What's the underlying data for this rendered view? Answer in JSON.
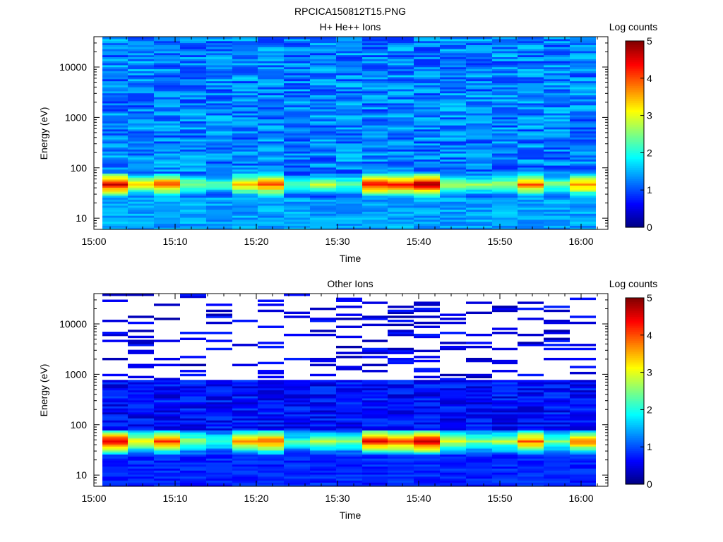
{
  "figure": {
    "title": "RPCICA150812T15.PNG",
    "colormap": "jet"
  },
  "chart_data": [
    {
      "type": "heatmap",
      "title": "H+ He++ Ions",
      "xlabel": "Time",
      "ylabel": "Energy (eV)",
      "y_scale": "log",
      "ylim": [
        6,
        40000
      ],
      "x_ticks": [
        "15:00",
        "15:10",
        "15:20",
        "15:30",
        "15:40",
        "15:50",
        "16:00"
      ],
      "y_ticks": [
        10,
        100,
        1000,
        10000
      ],
      "time_start": "15:01",
      "time_bin_minutes": 3.2,
      "colorbar": {
        "label": "Log counts",
        "range": [
          0,
          5
        ],
        "ticks": [
          0,
          1,
          2,
          3,
          4,
          5
        ]
      },
      "peak_log_counts_per_column": [
        4.6,
        3.2,
        4.0,
        2.7,
        2.3,
        3.6,
        4.0,
        2.2,
        2.8,
        2.5,
        4.4,
        4.2,
        4.9,
        2.9,
        2.6,
        2.7,
        3.9,
        2.6,
        3.8
      ],
      "low_energy_band_eV": [
        25,
        80
      ],
      "background_log_counts": [
        0.8,
        1.7
      ],
      "sparse_high_energy": false
    },
    {
      "type": "heatmap",
      "title": "Other Ions",
      "xlabel": "Time",
      "ylabel": "Energy (eV)",
      "y_scale": "log",
      "ylim": [
        6,
        40000
      ],
      "x_ticks": [
        "15:00",
        "15:10",
        "15:20",
        "15:30",
        "15:40",
        "15:50",
        "16:00"
      ],
      "y_ticks": [
        10,
        100,
        1000,
        10000
      ],
      "time_start": "15:01",
      "time_bin_minutes": 3.2,
      "colorbar": {
        "label": "Log counts",
        "range": [
          0,
          5
        ],
        "ticks": [
          0,
          1,
          2,
          3,
          4,
          5
        ]
      },
      "peak_log_counts_per_column": [
        4.6,
        3.2,
        4.0,
        2.7,
        2.3,
        3.6,
        4.0,
        2.2,
        2.8,
        2.5,
        4.4,
        4.2,
        4.9,
        2.9,
        2.6,
        2.7,
        3.9,
        2.6,
        3.8
      ],
      "low_energy_band_eV": [
        25,
        80
      ],
      "background_log_counts": [
        0.3,
        1.0
      ],
      "sparse_high_energy": true,
      "sparse_above_eV": 800
    }
  ]
}
